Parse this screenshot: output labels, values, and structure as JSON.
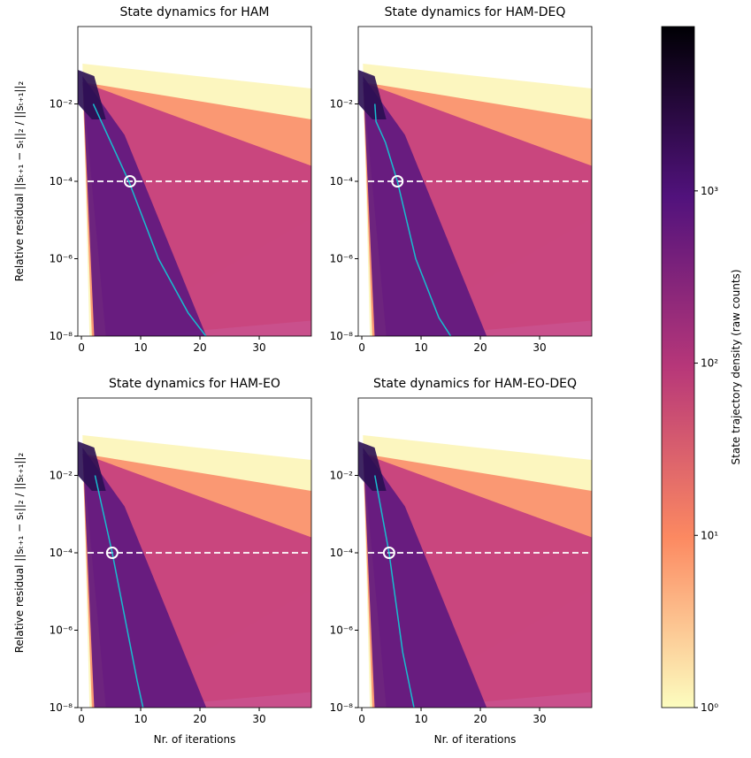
{
  "chart_data": [
    {
      "type": "line",
      "title": "State dynamics for HAM",
      "ylabel": "Relative residual ||sₜ₊₁ − sₜ||₂ / ||sₜ₊₁||₂",
      "x": [
        2,
        5,
        8,
        13,
        18,
        21
      ],
      "values": [
        0.01,
        0.001,
        0.0001,
        1e-06,
        4e-08,
        1e-08
      ],
      "color": "#17becf",
      "threshold": 0.0001,
      "marker": {
        "x": 8.2,
        "y": 0.0001
      },
      "log_y": true,
      "xlim": [
        -0.6,
        38.8
      ],
      "ylim": [
        1e-08,
        1
      ],
      "xticks": [
        0,
        10,
        20,
        30
      ],
      "yticks": [
        {
          "value": 1e-08,
          "label": "10⁻⁸"
        },
        {
          "value": 1e-06,
          "label": "10⁻⁶"
        },
        {
          "value": 0.0001,
          "label": "10⁻⁴"
        },
        {
          "value": 0.01,
          "label": "10⁻²"
        }
      ]
    },
    {
      "type": "line",
      "title": "State dynamics for HAM-DEQ",
      "x": [
        2.2,
        2.4,
        4,
        6,
        9.1,
        13,
        15
      ],
      "values": [
        0.01,
        0.0035,
        0.001,
        0.0001,
        1e-06,
        3e-08,
        1e-08
      ],
      "color": "#17becf",
      "threshold": 0.0001,
      "marker": {
        "x": 6,
        "y": 0.0001
      },
      "log_y": true,
      "xlim": [
        -0.6,
        38.8
      ],
      "ylim": [
        1e-08,
        1
      ],
      "xticks": [
        0,
        10,
        20,
        30
      ],
      "yticks": [
        {
          "value": 1e-08,
          "label": "10⁻⁸"
        },
        {
          "value": 1e-06,
          "label": "10⁻⁶"
        },
        {
          "value": 0.0001,
          "label": "10⁻⁴"
        },
        {
          "value": 0.01,
          "label": "10⁻²"
        }
      ]
    },
    {
      "type": "line",
      "title": "State dynamics for HAM-EO",
      "ylabel": "Relative residual ||sₜ₊₁ − sₜ||₂ / ||sₜ₊₁||₂",
      "xlabel": "Nr. of iterations",
      "x": [
        2.3,
        5.2,
        9.4,
        10.4
      ],
      "values": [
        0.01,
        0.0001,
        5e-08,
        1e-08
      ],
      "color": "#17becf",
      "threshold": 0.0001,
      "marker": {
        "x": 5.2,
        "y": 0.0001
      },
      "log_y": true,
      "xlim": [
        -0.6,
        38.8
      ],
      "ylim": [
        1e-08,
        1
      ],
      "xticks": [
        0,
        10,
        20,
        30
      ],
      "yticks": [
        {
          "value": 1e-08,
          "label": "10⁻⁸"
        },
        {
          "value": 1e-06,
          "label": "10⁻⁶"
        },
        {
          "value": 0.0001,
          "label": "10⁻⁴"
        },
        {
          "value": 0.01,
          "label": "10⁻²"
        }
      ]
    },
    {
      "type": "line",
      "title": "State dynamics for HAM-EO-DEQ",
      "xlabel": "Nr. of iterations",
      "x": [
        2.2,
        4.6,
        6.9,
        8.8
      ],
      "values": [
        0.01,
        0.0001,
        2.7e-07,
        1e-08
      ],
      "color": "#17becf",
      "threshold": 0.0001,
      "marker": {
        "x": 4.6,
        "y": 0.0001
      },
      "log_y": true,
      "xlim": [
        -0.6,
        38.8
      ],
      "ylim": [
        1e-08,
        1
      ],
      "xticks": [
        0,
        10,
        20,
        30
      ],
      "yticks": [
        {
          "value": 1e-08,
          "label": "10⁻⁸"
        },
        {
          "value": 1e-06,
          "label": "10⁻⁶"
        },
        {
          "value": 0.0001,
          "label": "10⁻⁴"
        },
        {
          "value": 0.01,
          "label": "10⁻²"
        }
      ]
    }
  ],
  "colorbar": {
    "label": "State trajectory density (raw counts)",
    "lim": [
      1,
      9000
    ],
    "log": true,
    "ticks": [
      {
        "value": 1,
        "label": "10⁰"
      },
      {
        "value": 10,
        "label": "10¹"
      },
      {
        "value": 100,
        "label": "10²"
      },
      {
        "value": 1000,
        "label": "10³"
      }
    ]
  }
}
